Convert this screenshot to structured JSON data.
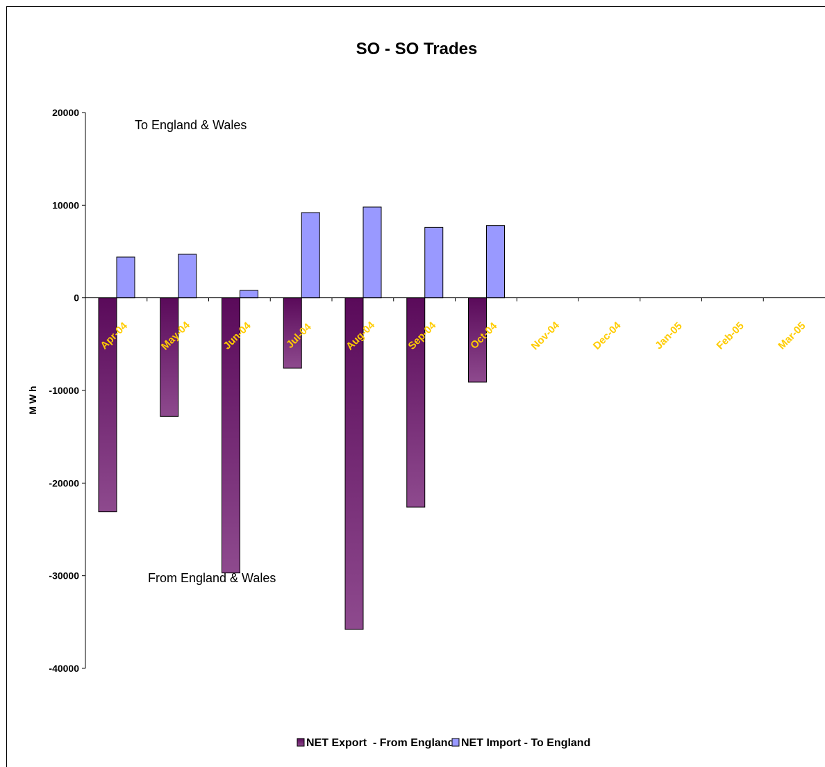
{
  "chart_data": {
    "type": "bar",
    "title": "SO - SO Trades",
    "ylabel": "M W h",
    "xlabel": "",
    "ylim": [
      -40000,
      20000
    ],
    "yticks": [
      20000,
      10000,
      0,
      -10000,
      -20000,
      -30000,
      -40000
    ],
    "grid": false,
    "legend_position": "bottom",
    "categories": [
      "Apr-04",
      "May-04",
      "Jun-04",
      "Jul-04",
      "Aug-04",
      "Sep-04",
      "Oct-04",
      "Nov-04",
      "Dec-04",
      "Jan-05",
      "Feb-05",
      "Mar-05"
    ],
    "series": [
      {
        "name": "NET Export  - From England",
        "color": "#7a2a78",
        "values": [
          -23100,
          -12800,
          -29700,
          -7600,
          -35800,
          -22600,
          -9100,
          null,
          null,
          null,
          null,
          null
        ]
      },
      {
        "name": "NET Import - To England",
        "color": "#9999ff",
        "values": [
          4400,
          4700,
          800,
          9200,
          9800,
          7600,
          7800,
          null,
          null,
          null,
          null,
          null
        ]
      }
    ],
    "annotations": [
      "To England & Wales",
      "From England & Wales"
    ]
  },
  "colors": {
    "tick_label": "#ffcc00",
    "axis": "#000000",
    "export_dark": "#5a0a5a",
    "export_light": "#8e4a8e",
    "import": "#9999ff"
  }
}
